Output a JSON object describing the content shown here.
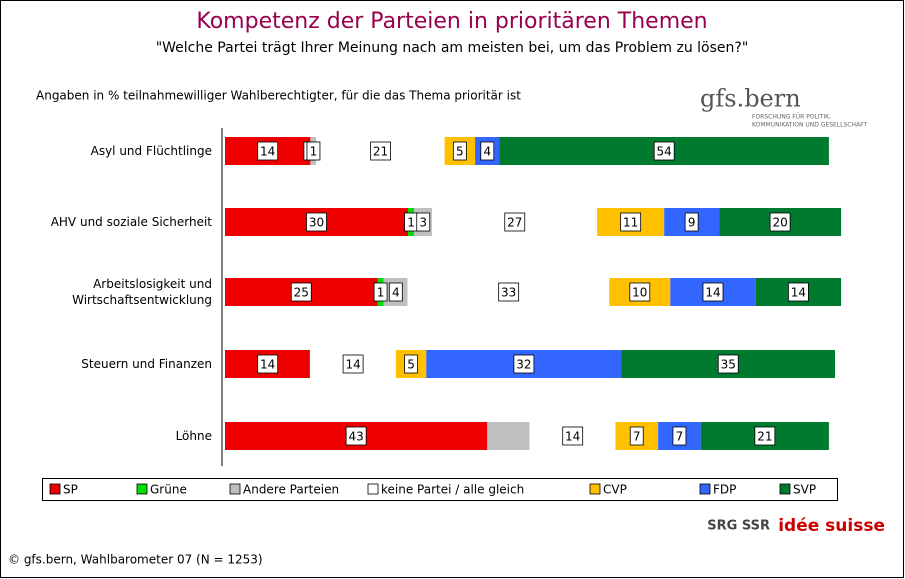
{
  "chart_data": {
    "type": "stacked-bar-horizontal",
    "title": "Kompetenz der Parteien in prioritären Themen",
    "subtitle": "\"Welche Partei trägt Ihrer Meinung nach am meisten bei, um das Problem zu lösen?\"",
    "note": "Angaben in % teilnahmewilliger Wahlberechtigter, für die das Thema prioritär ist",
    "logo": "gfs.bern",
    "logo_tagline": [
      "FORSCHUNG FÜR POLITIK,",
      "KOMMUNIKATION UND GESELLSCHAFT"
    ],
    "brand": [
      "SRG SSR",
      "idée suisse"
    ],
    "source": "© gfs.bern, Wahlbarometer 07 (N = 1253)",
    "categories": [
      [
        "Asyl und Flüchtlinge"
      ],
      [
        "AHV und soziale Sicherheit"
      ],
      [
        "Arbeitslosigkeit und",
        "Wirtschaftsentwicklung"
      ],
      [
        "Steuern und Finanzen"
      ],
      [
        "Löhne"
      ]
    ],
    "xlim": [
      0,
      100
    ],
    "legend": "bottom",
    "series": [
      {
        "name": "SP",
        "color": "#ee0000",
        "values": [
          14,
          30,
          25,
          14,
          43
        ],
        "value_labels": [
          "14",
          "30",
          "25",
          "14",
          "43"
        ]
      },
      {
        "name": "Grüne",
        "color": "#00dd00",
        "values": [
          0,
          1,
          1,
          null,
          null
        ],
        "value_labels": [
          "0",
          "1",
          "1",
          null,
          null
        ]
      },
      {
        "name": "Andere Parteien",
        "color": "#bfbfbf",
        "values": [
          1,
          3,
          4,
          null,
          7
        ],
        "value_labels": [
          "1",
          "3",
          "4",
          null,
          null
        ]
      },
      {
        "name": "keine Partei / alle gleich",
        "color": "#ffffff",
        "values": [
          21,
          27,
          33,
          14,
          14
        ],
        "value_labels": [
          "21",
          "27",
          "33",
          "14",
          "14"
        ]
      },
      {
        "name": "CVP",
        "color": "#ffc000",
        "values": [
          5,
          11,
          10,
          5,
          7
        ],
        "value_labels": [
          "5",
          "11",
          "10",
          "5",
          "7"
        ]
      },
      {
        "name": "FDP",
        "color": "#3366ff",
        "values": [
          4,
          9,
          14,
          32,
          7
        ],
        "value_labels": [
          "4",
          "9",
          "14",
          "32",
          "7"
        ]
      },
      {
        "name": "SVP",
        "color": "#007a2e",
        "values": [
          54,
          20,
          14,
          35,
          21
        ],
        "value_labels": [
          "54",
          "20",
          "14",
          "35",
          "21"
        ]
      }
    ]
  }
}
